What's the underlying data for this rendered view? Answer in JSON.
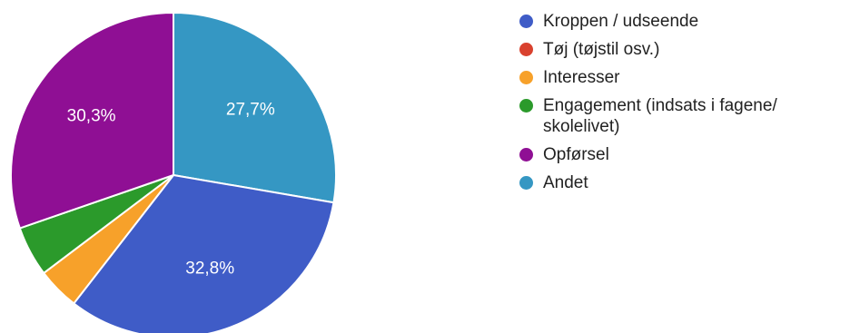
{
  "chart_data": {
    "type": "pie",
    "title": "",
    "legend_position": "right",
    "slices": [
      {
        "name": "Kroppen / udseende",
        "value": 32.8,
        "label": "32,8%",
        "color": "#3f5cc7"
      },
      {
        "name": "Tøj (tøjstil osv.)",
        "value": 0,
        "label": "",
        "color": "#d9412e"
      },
      {
        "name": "Interesser",
        "value": 4.2,
        "label": "",
        "color": "#f7a12a"
      },
      {
        "name": "Engagement (indsats i fagene/ skolelivet)",
        "value": 5.0,
        "label": "",
        "color": "#2b9a2b"
      },
      {
        "name": "Opførsel",
        "value": 30.3,
        "label": "30,3%",
        "color": "#8f0f94"
      },
      {
        "name": "Andet",
        "value": 27.7,
        "label": "27,7%",
        "color": "#3597c3"
      }
    ]
  }
}
